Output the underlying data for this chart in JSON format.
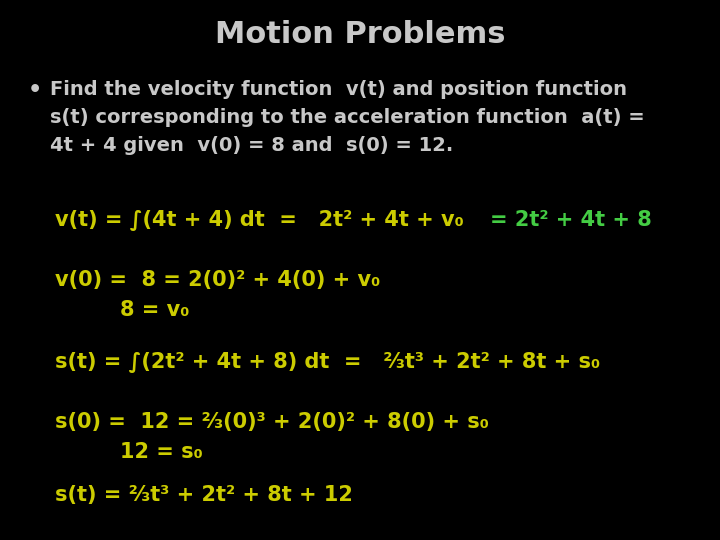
{
  "title": "Motion Problems",
  "bg_color": "#000000",
  "title_color": "#c8c8c8",
  "yellow_color": "#cccc00",
  "green_color": "#44cc44",
  "title_fontsize": 22,
  "body_fontsize": 14,
  "math_fontsize": 15,
  "bullet_lines": [
    "Find the velocity function  v(t) and position function",
    "s(t) corresponding to the acceleration function  a(t) =",
    "4t + 4 given  v(0) = 8 and  s(0) = 12."
  ]
}
